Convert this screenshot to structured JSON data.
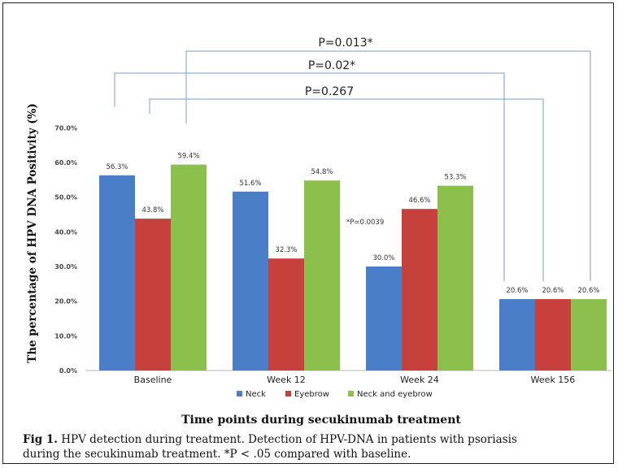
{
  "chart_data": {
    "type": "bar",
    "categories": [
      "Baseline",
      "Week 12",
      "Week 24",
      "Week 156"
    ],
    "series": [
      {
        "name": "Neck",
        "color": "#4a7ec8",
        "values": [
          56.3,
          51.6,
          30.0,
          20.6
        ],
        "labels": [
          "56.3%",
          "51.6%",
          "30.0%",
          "20.6%"
        ]
      },
      {
        "name": "Eyebrow",
        "color": "#c8403c",
        "values": [
          43.8,
          32.3,
          46.6,
          20.6
        ],
        "labels": [
          "43.8%",
          "32.3%",
          "46.6%",
          "20.6%"
        ]
      },
      {
        "name": "Neck and eyebrow",
        "color": "#8cc04c",
        "values": [
          59.4,
          54.8,
          53.3,
          20.6
        ],
        "labels": [
          "59.4%",
          "54.8%",
          "53.3%",
          "20.6%"
        ]
      }
    ],
    "ylim": [
      0,
      70
    ],
    "yticks": [
      "0.0%",
      "10.0%",
      "20.0%",
      "30.0%",
      "40.0%",
      "50.0%",
      "60.0%",
      "70.0%"
    ],
    "ylabel": "The percentage of HPV DNA Positivity (%)",
    "xlabel": "Time points during secukinumab treatment",
    "legend_position": "bottom",
    "annotations": [
      {
        "text": "*P=0.0039"
      }
    ],
    "comparisons": [
      {
        "label": "P=0.013*"
      },
      {
        "label": "P=0.02*"
      },
      {
        "label": "P=0.267"
      }
    ]
  },
  "caption": {
    "bold": "Fig 1.",
    "line1": " HPV detection during treatment. Detection of HPV-DNA in patients with psoriasis",
    "line2": "during the secukinumab treatment. *P < .05 compared with baseline."
  }
}
